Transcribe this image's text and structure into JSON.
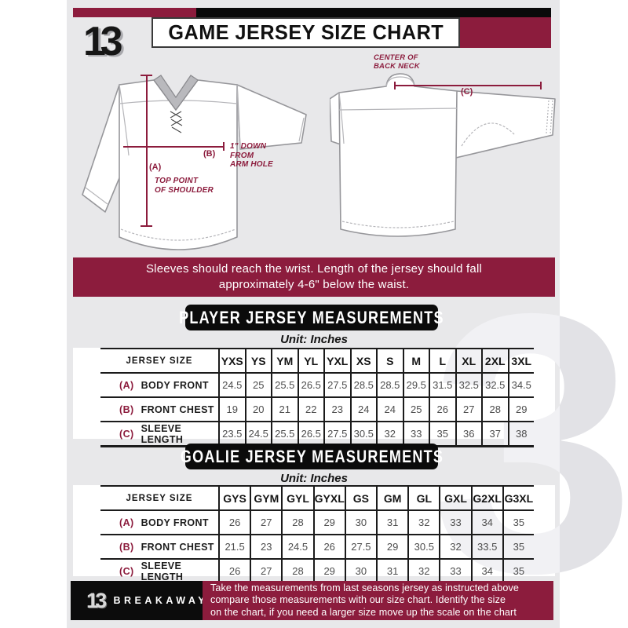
{
  "header": {
    "title": "GAME JERSEY SIZE CHART",
    "logo_text": "13"
  },
  "diagram": {
    "front": {
      "a_label": "(A)",
      "a_caption": [
        "TOP POINT",
        "OF SHOULDER"
      ],
      "b_label": "(B)",
      "b_caption": [
        "1\" DOWN",
        "FROM",
        "ARM HOLE"
      ]
    },
    "back": {
      "c_label": "(C)",
      "neck_caption": [
        "CENTER OF",
        "BACK NECK"
      ]
    }
  },
  "banner": {
    "lines": [
      "Sleeves should reach the wrist. Length of the jersey should fall",
      "approximately 4-6\" below the waist."
    ]
  },
  "player_section": {
    "title": "PLAYER JERSEY MEASUREMENTS",
    "unit": "Unit: Inches",
    "table": {
      "size_header": "JERSEY SIZE",
      "columns": [
        "YXS",
        "YS",
        "YM",
        "YL",
        "YXL",
        "XS",
        "S",
        "M",
        "L",
        "XL",
        "2XL",
        "3XL"
      ],
      "rows": [
        {
          "key": "(A)",
          "label": "BODY FRONT",
          "values": [
            "24.5",
            "25",
            "25.5",
            "26.5",
            "27.5",
            "28.5",
            "28.5",
            "29.5",
            "31.5",
            "32.5",
            "32.5",
            "34.5"
          ]
        },
        {
          "key": "(B)",
          "label": "FRONT CHEST",
          "values": [
            "19",
            "20",
            "21",
            "22",
            "23",
            "24",
            "24",
            "25",
            "26",
            "27",
            "28",
            "29"
          ]
        },
        {
          "key": "(C)",
          "label": "SLEEVE LENGTH",
          "values": [
            "23.5",
            "24.5",
            "25.5",
            "26.5",
            "27.5",
            "30.5",
            "32",
            "33",
            "35",
            "36",
            "37",
            "38"
          ]
        }
      ]
    }
  },
  "goalie_section": {
    "title": "GOALIE JERSEY MEASUREMENTS",
    "unit": "Unit: Inches",
    "table": {
      "size_header": "JERSEY SIZE",
      "columns": [
        "GYS",
        "GYM",
        "GYL",
        "GYXL",
        "GS",
        "GM",
        "GL",
        "GXL",
        "G2XL",
        "G3XL"
      ],
      "rows": [
        {
          "key": "(A)",
          "label": "BODY FRONT",
          "values": [
            "26",
            "27",
            "28",
            "29",
            "30",
            "31",
            "32",
            "33",
            "34",
            "35"
          ]
        },
        {
          "key": "(B)",
          "label": "FRONT CHEST",
          "values": [
            "21.5",
            "23",
            "24.5",
            "26",
            "27.5",
            "29",
            "30.5",
            "32",
            "33.5",
            "35"
          ]
        },
        {
          "key": "(C)",
          "label": "SLEEVE LENGTH",
          "values": [
            "26",
            "27",
            "28",
            "29",
            "30",
            "31",
            "32",
            "33",
            "34",
            "35"
          ]
        }
      ]
    }
  },
  "footer": {
    "logo_text": "13",
    "brand": "BREAKAWAY",
    "note_lines": [
      "Take the measurements from last seasons jersey as instructed above",
      "compare those measurements with our size chart. Identify the size",
      "on the chart, if you need a larger size move up the scale on the chart"
    ]
  },
  "watermark": {
    "glyph": "3"
  },
  "colors": {
    "maroon": "#8C1C3D",
    "black": "#0A0A0A",
    "background_gray": "#E8E8EA"
  }
}
